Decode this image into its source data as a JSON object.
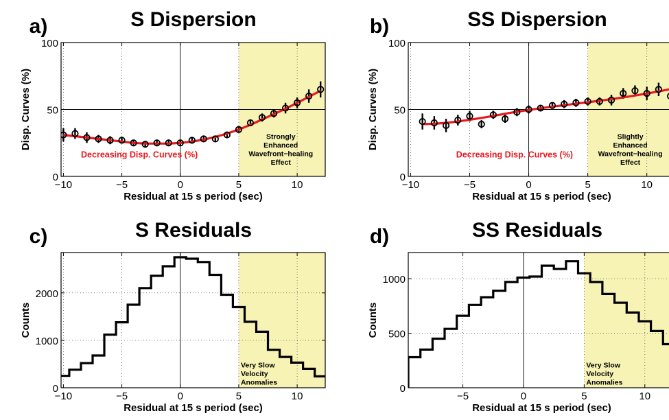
{
  "chart_data": [
    {
      "panel": "a)",
      "type": "scatter",
      "title": "S Dispersion",
      "xlabel": "Residual at 15 s period (sec)",
      "ylabel": "Disp. Curves (%)",
      "xlim": [
        -10.2,
        12.4
      ],
      "ylim": [
        0,
        100
      ],
      "xticks": [
        -10,
        -5,
        0,
        5,
        10
      ],
      "yticks": [
        0,
        50,
        100
      ],
      "grid": true,
      "highlight_range": [
        5,
        12.4
      ],
      "highlight_color": "#f6f3b4",
      "series": [
        {
          "x": [
            -10,
            -9,
            -8,
            -7,
            -6,
            -5,
            -4,
            -3,
            -2,
            -1,
            0,
            1,
            2,
            3,
            4,
            5,
            6,
            7,
            8,
            9,
            10,
            11,
            12
          ],
          "y": [
            31,
            32,
            29,
            28,
            27,
            27,
            25,
            24,
            25,
            25,
            25,
            27,
            28,
            28,
            31,
            35,
            40,
            44,
            47,
            51,
            55,
            60,
            65
          ],
          "err": [
            5,
            4,
            4,
            3,
            3,
            2,
            2,
            2,
            2,
            2,
            2,
            2,
            2,
            2,
            2,
            2,
            2,
            3,
            3,
            4,
            4,
            5,
            6
          ],
          "color": "#000000"
        }
      ],
      "fit": {
        "x": [
          -10,
          -9,
          -8,
          -7,
          -6,
          -5,
          -4,
          -3,
          -2,
          -1,
          0,
          1,
          2,
          3,
          4,
          5,
          6,
          7,
          8,
          9,
          10,
          11,
          12
        ],
        "y": [
          31,
          30,
          29,
          28,
          27,
          26,
          25,
          24.5,
          24.5,
          24.5,
          25,
          26,
          27.5,
          29.5,
          32,
          35,
          38.5,
          42.5,
          46.5,
          50.5,
          55,
          59.5,
          64
        ],
        "color": "#e8191e"
      },
      "annotations": [
        {
          "text": "Decreasing Disp. Curves (%)",
          "color": "#e8191e",
          "x": -3.5,
          "y": 14
        },
        {
          "lines": [
            "Strongly",
            "Enhanced",
            "Wavefront−healing",
            "Effect"
          ],
          "color": "#000000",
          "x": 8.6,
          "y": 28
        }
      ]
    },
    {
      "panel": "b)",
      "type": "scatter",
      "title": "SS Dispersion",
      "xlabel": "Residual at 15 s period (sec)",
      "ylabel": "Disp. Curves (%)",
      "xlim": [
        -10.2,
        12.4
      ],
      "ylim": [
        0,
        100
      ],
      "xticks": [
        -10,
        -5,
        0,
        5,
        10
      ],
      "yticks": [
        0,
        50,
        100
      ],
      "grid": true,
      "highlight_range": [
        5,
        12.4
      ],
      "highlight_color": "#f6f3b4",
      "series": [
        {
          "x": [
            -9,
            -8,
            -7,
            -6,
            -5,
            -4,
            -3,
            -2,
            -1,
            0,
            1,
            2,
            3,
            4,
            5,
            6,
            7,
            8,
            9,
            10,
            11,
            12
          ],
          "y": [
            41,
            40,
            38,
            42,
            45,
            39,
            46,
            43,
            48,
            50,
            51,
            53,
            54,
            55,
            56,
            56,
            57,
            62,
            64,
            62,
            65,
            60
          ],
          "err": [
            6,
            5,
            5,
            4,
            4,
            3,
            3,
            3,
            3,
            3,
            2,
            2,
            3,
            3,
            3,
            3,
            4,
            4,
            4,
            5,
            5,
            5
          ],
          "color": "#000000"
        }
      ],
      "fit": {
        "x": [
          -9,
          -8,
          -7,
          -6,
          -5,
          -4,
          -3,
          -2,
          -1,
          0,
          1,
          2,
          3,
          4,
          5,
          6,
          7,
          8,
          9,
          10,
          11,
          12
        ],
        "y": [
          39,
          39.3,
          40,
          41,
          42.3,
          43.7,
          45.2,
          46.8,
          48.3,
          49.6,
          50.9,
          52.1,
          53.2,
          54.3,
          55.4,
          56.5,
          57.7,
          59,
          60.4,
          61.9,
          63.5,
          65.2
        ],
        "color": "#e8191e"
      },
      "annotations": [
        {
          "text": "Decreasing Disp. Curves (%)",
          "color": "#e8191e",
          "x": -1.2,
          "y": 14
        },
        {
          "lines": [
            "Slightly",
            "Enhanced",
            "Wavefront−healing",
            "Effect"
          ],
          "color": "#000000",
          "x": 8.6,
          "y": 28
        }
      ]
    },
    {
      "panel": "c)",
      "type": "histogram",
      "title": "S Residuals",
      "xlabel": "Residual at 15 s period (sec)",
      "ylabel": "Counts",
      "xlim": [
        -10.2,
        12.4
      ],
      "ylim": [
        0,
        2850
      ],
      "xticks": [
        -10,
        -5,
        0,
        5,
        10
      ],
      "yticks": [
        0,
        1000,
        2000
      ],
      "grid": true,
      "highlight_range": [
        5,
        12.4
      ],
      "highlight_color": "#f6f3b4",
      "x": [
        -10,
        -9,
        -8,
        -7,
        -6,
        -5,
        -4,
        -3,
        -2,
        -1,
        0,
        1,
        2,
        3,
        4,
        5,
        6,
        7,
        8,
        9,
        10,
        11,
        12
      ],
      "values": [
        250,
        380,
        520,
        680,
        1120,
        1380,
        1750,
        2100,
        2360,
        2560,
        2750,
        2720,
        2650,
        2380,
        1960,
        1700,
        1390,
        1180,
        800,
        650,
        530,
        400,
        240
      ],
      "color": "#000000",
      "annotations": [
        {
          "lines": [
            "Very Slow",
            "Velocity",
            "Anomalies"
          ],
          "color": "#000000",
          "x": 5,
          "y": 430
        }
      ]
    },
    {
      "panel": "d)",
      "type": "histogram",
      "title": "SS Residuals",
      "xlabel": "Residual at 15 s period (sec)",
      "ylabel": "Counts",
      "xlim": [
        -9.5,
        12.5
      ],
      "ylim": [
        0,
        1240
      ],
      "xticks": [
        -5,
        0,
        5,
        10
      ],
      "yticks": [
        0,
        500,
        1000
      ],
      "grid": true,
      "highlight_range": [
        5,
        12.5
      ],
      "highlight_color": "#f6f3b4",
      "x": [
        -9,
        -8,
        -7,
        -6,
        -5,
        -4,
        -3,
        -2,
        -1,
        0,
        1,
        2,
        3,
        4,
        5,
        6,
        7,
        8,
        9,
        10,
        11,
        12
      ],
      "values": [
        280,
        350,
        450,
        540,
        660,
        760,
        830,
        890,
        970,
        1010,
        1020,
        1120,
        1090,
        1160,
        1050,
        970,
        860,
        780,
        690,
        610,
        520,
        400
      ],
      "color": "#000000",
      "annotations": [
        {
          "lines": [
            "Very Slow",
            "Velocity",
            "Anomalies"
          ],
          "color": "#000000",
          "x": 5,
          "y": 185
        }
      ]
    }
  ]
}
